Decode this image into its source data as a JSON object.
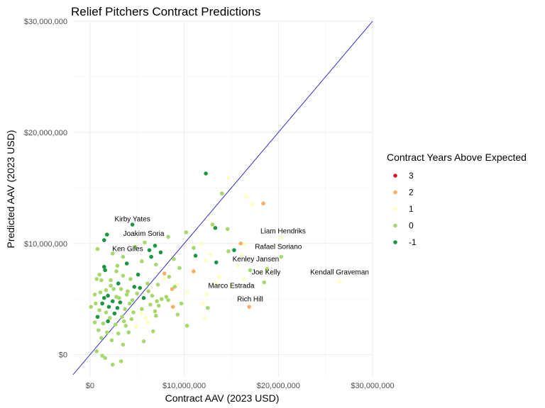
{
  "chart_data": {
    "type": "scatter",
    "title": "Relief Pitchers Contract Predictions",
    "xlabel": "Contract AAV (2023 USD)",
    "ylabel": "Predicted AAV (2023 USD)",
    "xlim": [
      -1800000,
      30000000
    ],
    "ylim": [
      -2000000,
      30000000
    ],
    "x_ticks": [
      0,
      10000000,
      20000000,
      30000000
    ],
    "x_tick_labels": [
      "$0",
      "$10,000,000",
      "$20,000,000",
      "$30,000,000"
    ],
    "y_ticks": [
      0,
      10000000,
      20000000,
      30000000
    ],
    "y_tick_labels": [
      "$0",
      "$10,000,000",
      "$20,000,000",
      "$30,000,000"
    ],
    "grid": true,
    "reference_line": {
      "slope": 1,
      "intercept": 0,
      "color": "#0000cc"
    },
    "legend": {
      "title": "Contract Years Above Expected",
      "placement": "right",
      "entries": [
        {
          "label": "3",
          "value": 3,
          "color": "#d7191c"
        },
        {
          "label": "2",
          "value": 2,
          "color": "#fdae61"
        },
        {
          "label": "1",
          "value": 1,
          "color": "#ffffbf"
        },
        {
          "label": "0",
          "value": 0,
          "color": "#a6d96a"
        },
        {
          "label": "-1",
          "value": -1,
          "color": "#1a9641"
        }
      ]
    },
    "annotations": [
      {
        "text": "Kirby Yates",
        "x": 4500000,
        "y": 12000000
      },
      {
        "text": "Joakim Soria",
        "x": 5700000,
        "y": 10700000
      },
      {
        "text": "Ken Giles",
        "x": 4000000,
        "y": 9300000
      },
      {
        "text": "Liam Hendriks",
        "x": 20500000,
        "y": 10900000
      },
      {
        "text": "Rafael Soriano",
        "x": 20000000,
        "y": 9500000
      },
      {
        "text": "Kenley Jansen",
        "x": 17600000,
        "y": 8400000
      },
      {
        "text": "Joe Kelly",
        "x": 18700000,
        "y": 7200000
      },
      {
        "text": "Kendall Graveman",
        "x": 26500000,
        "y": 7200000
      },
      {
        "text": "Marco Estrada",
        "x": 15000000,
        "y": 6000000
      },
      {
        "text": "Rich Hill",
        "x": 17000000,
        "y": 4800000
      }
    ],
    "points": [
      {
        "x": 12300000,
        "y": 16300000,
        "group": -1
      },
      {
        "x": 14700000,
        "y": 15900000,
        "group": 1
      },
      {
        "x": 14000000,
        "y": 14500000,
        "group": 0
      },
      {
        "x": 16600000,
        "y": 14200000,
        "group": 1
      },
      {
        "x": 17200000,
        "y": 13500000,
        "group": 1
      },
      {
        "x": 18400000,
        "y": 13600000,
        "group": 2
      },
      {
        "x": 13000000,
        "y": 11700000,
        "group": 0
      },
      {
        "x": 13300000,
        "y": 11400000,
        "group": -1
      },
      {
        "x": 14600000,
        "y": 11300000,
        "group": 0
      },
      {
        "x": 4500000,
        "y": 11700000,
        "group": -1
      },
      {
        "x": 1800000,
        "y": 10800000,
        "group": -1
      },
      {
        "x": 1500000,
        "y": 10300000,
        "group": -1
      },
      {
        "x": 5800000,
        "y": 10100000,
        "group": 0
      },
      {
        "x": 8300000,
        "y": 10600000,
        "group": 0
      },
      {
        "x": 10200000,
        "y": 11000000,
        "group": 0
      },
      {
        "x": 16000000,
        "y": 10000000,
        "group": 2
      },
      {
        "x": 16400000,
        "y": 9900000,
        "group": 1
      },
      {
        "x": 20300000,
        "y": 10500000,
        "group": 1
      },
      {
        "x": 15300000,
        "y": 9400000,
        "group": -1
      },
      {
        "x": 14700000,
        "y": 9300000,
        "group": 0
      },
      {
        "x": 11000000,
        "y": 9600000,
        "group": 0
      },
      {
        "x": 11200000,
        "y": 8900000,
        "group": -1
      },
      {
        "x": 12300000,
        "y": 8500000,
        "group": 1
      },
      {
        "x": 13400000,
        "y": 8300000,
        "group": -1
      },
      {
        "x": 15700000,
        "y": 8000000,
        "group": 1
      },
      {
        "x": 17000000,
        "y": 7600000,
        "group": 0
      },
      {
        "x": 18800000,
        "y": 7700000,
        "group": 0
      },
      {
        "x": 20300000,
        "y": 8800000,
        "group": 0
      },
      {
        "x": 11000000,
        "y": 7500000,
        "group": 2
      },
      {
        "x": 13400000,
        "y": 6400000,
        "group": 1
      },
      {
        "x": 15000000,
        "y": 6200000,
        "group": 1
      },
      {
        "x": 16300000,
        "y": 6800000,
        "group": 1
      },
      {
        "x": 18500000,
        "y": 6500000,
        "group": 0
      },
      {
        "x": 12400000,
        "y": 5400000,
        "group": 1
      },
      {
        "x": 12000000,
        "y": 4600000,
        "group": 1
      },
      {
        "x": 16900000,
        "y": 4300000,
        "group": 2
      },
      {
        "x": 12500000,
        "y": 4200000,
        "group": 0
      },
      {
        "x": 9200000,
        "y": 6300000,
        "group": 1
      },
      {
        "x": 8700000,
        "y": 5900000,
        "group": 2
      },
      {
        "x": 9000000,
        "y": 6100000,
        "group": 0
      },
      {
        "x": 8400000,
        "y": 7000000,
        "group": 0
      },
      {
        "x": 7900000,
        "y": 7300000,
        "group": 2
      },
      {
        "x": 8800000,
        "y": 4300000,
        "group": 2
      },
      {
        "x": 9700000,
        "y": 4600000,
        "group": 0
      },
      {
        "x": 10300000,
        "y": 2600000,
        "group": 0
      },
      {
        "x": 10300000,
        "y": 5600000,
        "group": 1
      },
      {
        "x": 7500000,
        "y": 9200000,
        "group": -1
      },
      {
        "x": 6300000,
        "y": 9400000,
        "group": -1
      },
      {
        "x": 6500000,
        "y": 8800000,
        "group": -1
      },
      {
        "x": 7000000,
        "y": 8100000,
        "group": 0
      },
      {
        "x": 5500000,
        "y": 8400000,
        "group": 0
      },
      {
        "x": 3500000,
        "y": 8800000,
        "group": 0
      },
      {
        "x": 3900000,
        "y": 8200000,
        "group": -1
      },
      {
        "x": 2900000,
        "y": 8000000,
        "group": 0
      },
      {
        "x": 1500000,
        "y": 7900000,
        "group": -1
      },
      {
        "x": 1600000,
        "y": 7600000,
        "group": -1
      },
      {
        "x": 700000,
        "y": 6800000,
        "group": 0
      },
      {
        "x": 1200000,
        "y": 6700000,
        "group": 0
      },
      {
        "x": 2200000,
        "y": 6700000,
        "group": 0
      },
      {
        "x": 3500000,
        "y": 7100000,
        "group": 0
      },
      {
        "x": 4300000,
        "y": 6800000,
        "group": 0
      },
      {
        "x": 5100000,
        "y": 7200000,
        "group": -1
      },
      {
        "x": 6100000,
        "y": 6400000,
        "group": 0
      },
      {
        "x": 7200000,
        "y": 6300000,
        "group": 0
      },
      {
        "x": 4700000,
        "y": 6100000,
        "group": -1
      },
      {
        "x": 3300000,
        "y": 5900000,
        "group": 0
      },
      {
        "x": 2500000,
        "y": 5900000,
        "group": 0
      },
      {
        "x": 1700000,
        "y": 5800000,
        "group": 0
      },
      {
        "x": 1100000,
        "y": 5600000,
        "group": 0
      },
      {
        "x": 500000,
        "y": 5400000,
        "group": 0
      },
      {
        "x": 1900000,
        "y": 5300000,
        "group": -1
      },
      {
        "x": 2800000,
        "y": 5200000,
        "group": 0
      },
      {
        "x": 3900000,
        "y": 5400000,
        "group": 0
      },
      {
        "x": 5000000,
        "y": 5500000,
        "group": 0
      },
      {
        "x": 5700000,
        "y": 5100000,
        "group": -1
      },
      {
        "x": 6600000,
        "y": 5300000,
        "group": 0
      },
      {
        "x": 7600000,
        "y": 5000000,
        "group": 0
      },
      {
        "x": 8100000,
        "y": 5200000,
        "group": 0
      },
      {
        "x": 2400000,
        "y": 4800000,
        "group": -1
      },
      {
        "x": 3200000,
        "y": 4700000,
        "group": -1
      },
      {
        "x": 1300000,
        "y": 4600000,
        "group": -1
      },
      {
        "x": 600000,
        "y": 4600000,
        "group": 0
      },
      {
        "x": 4200000,
        "y": 4600000,
        "group": 0
      },
      {
        "x": 6400000,
        "y": 4500000,
        "group": 0
      },
      {
        "x": 7300000,
        "y": 4400000,
        "group": 0
      },
      {
        "x": 2000000,
        "y": 4300000,
        "group": -1
      },
      {
        "x": 2900000,
        "y": 4200000,
        "group": -1
      },
      {
        "x": 3700000,
        "y": 4100000,
        "group": 0
      },
      {
        "x": 100000,
        "y": 4300000,
        "group": 0
      },
      {
        "x": 1000000,
        "y": 4000000,
        "group": 0
      },
      {
        "x": 1700000,
        "y": 3800000,
        "group": 0
      },
      {
        "x": 2600000,
        "y": 3700000,
        "group": -1
      },
      {
        "x": 4600000,
        "y": 3800000,
        "group": 0
      },
      {
        "x": 5400000,
        "y": 3700000,
        "group": 1
      },
      {
        "x": 6900000,
        "y": 3900000,
        "group": 0
      },
      {
        "x": 800000,
        "y": 3400000,
        "group": -1
      },
      {
        "x": 2100000,
        "y": 3300000,
        "group": 0
      },
      {
        "x": 3400000,
        "y": 3400000,
        "group": 0
      },
      {
        "x": 4400000,
        "y": 3200000,
        "group": 0
      },
      {
        "x": 5900000,
        "y": 3300000,
        "group": 1
      },
      {
        "x": 6100000,
        "y": 2900000,
        "group": 1
      },
      {
        "x": 500000,
        "y": 2900000,
        "group": 0
      },
      {
        "x": 1400000,
        "y": 2800000,
        "group": 0
      },
      {
        "x": 2700000,
        "y": 2700000,
        "group": 0
      },
      {
        "x": 3800000,
        "y": 2600000,
        "group": 0
      },
      {
        "x": 4900000,
        "y": 2500000,
        "group": 1
      },
      {
        "x": 900000,
        "y": 2200000,
        "group": 0
      },
      {
        "x": 1800000,
        "y": 2000000,
        "group": 0
      },
      {
        "x": 3000000,
        "y": 1900000,
        "group": 0
      },
      {
        "x": 4100000,
        "y": 2000000,
        "group": 0
      },
      {
        "x": 6700000,
        "y": 2100000,
        "group": 0
      },
      {
        "x": 1200000,
        "y": 1500000,
        "group": 0
      },
      {
        "x": 2300000,
        "y": 1300000,
        "group": 0
      },
      {
        "x": 5700000,
        "y": 1200000,
        "group": 0
      },
      {
        "x": 3500000,
        "y": 900000,
        "group": 0
      },
      {
        "x": 700000,
        "y": 300000,
        "group": 0
      },
      {
        "x": 1300000,
        "y": -100000,
        "group": 0
      },
      {
        "x": 1600000,
        "y": -300000,
        "group": 0
      },
      {
        "x": 2400000,
        "y": -900000,
        "group": 0
      },
      {
        "x": 3300000,
        "y": -600000,
        "group": 0
      },
      {
        "x": 800000,
        "y": 9500000,
        "group": 0
      },
      {
        "x": 2400000,
        "y": 9100000,
        "group": 0
      },
      {
        "x": 4800000,
        "y": 9700000,
        "group": 0
      },
      {
        "x": 6900000,
        "y": 9800000,
        "group": -1
      },
      {
        "x": 8900000,
        "y": 8600000,
        "group": 0
      },
      {
        "x": 9500000,
        "y": 7800000,
        "group": 0
      },
      {
        "x": 7800000,
        "y": 6800000,
        "group": 1
      },
      {
        "x": 5300000,
        "y": 6000000,
        "group": -1
      },
      {
        "x": 2200000,
        "y": 6200000,
        "group": 0
      },
      {
        "x": 1500000,
        "y": 5100000,
        "group": -1
      },
      {
        "x": 3100000,
        "y": 5100000,
        "group": 0
      },
      {
        "x": 4500000,
        "y": 4900000,
        "group": 0
      },
      {
        "x": 5500000,
        "y": 4100000,
        "group": 0
      },
      {
        "x": 7000000,
        "y": 3500000,
        "group": 0
      },
      {
        "x": 1900000,
        "y": 3000000,
        "group": -1
      },
      {
        "x": 3600000,
        "y": 3000000,
        "group": 0
      },
      {
        "x": 1000000,
        "y": 7200000,
        "group": 0
      },
      {
        "x": 2800000,
        "y": 7500000,
        "group": 0
      },
      {
        "x": 3000000,
        "y": 6400000,
        "group": -1
      },
      {
        "x": 4000000,
        "y": 5700000,
        "group": 0
      },
      {
        "x": 6200000,
        "y": 5700000,
        "group": 0
      },
      {
        "x": 7100000,
        "y": 4800000,
        "group": 0
      },
      {
        "x": 8300000,
        "y": 4900000,
        "group": 0
      },
      {
        "x": 9300000,
        "y": 3600000,
        "group": 0
      },
      {
        "x": 12200000,
        "y": 3300000,
        "group": 1
      },
      {
        "x": 16100000,
        "y": 9000000,
        "group": 1
      },
      {
        "x": 26500000,
        "y": 6600000,
        "group": 1
      },
      {
        "x": 13700000,
        "y": 7000000,
        "group": 1
      },
      {
        "x": 12800000,
        "y": 9000000,
        "group": 1
      },
      {
        "x": 11800000,
        "y": 10000000,
        "group": 1
      }
    ]
  }
}
